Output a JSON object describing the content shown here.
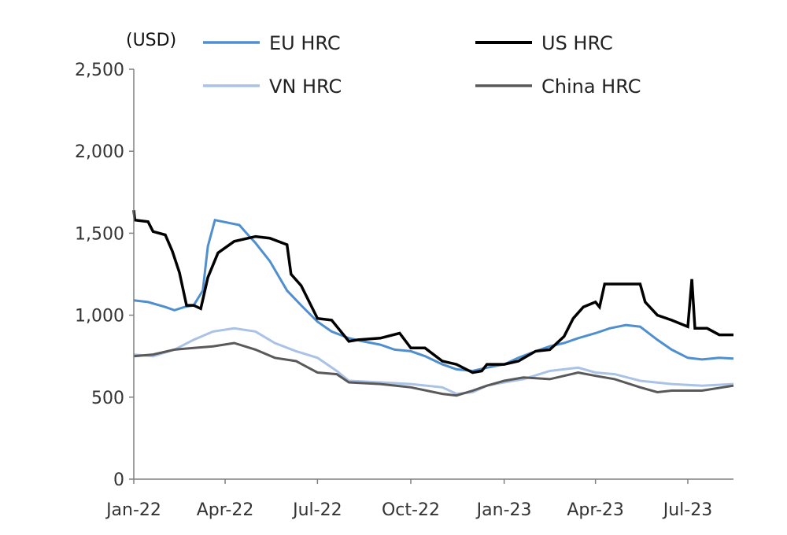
{
  "chart_data": {
    "type": "line",
    "title": "",
    "unit_label": "(USD)",
    "xlabel": "",
    "ylabel": "",
    "ylim": [
      0,
      2500
    ],
    "yticks": [
      0,
      500,
      1000,
      1500,
      2000,
      2500
    ],
    "ytick_labels": [
      "0",
      "500",
      "1,000",
      "1,500",
      "2,000",
      "2,500"
    ],
    "xrange": [
      "2022-01-01",
      "2023-08-15"
    ],
    "xticks": [
      "2022-01-01",
      "2022-04-01",
      "2022-07-01",
      "2022-10-01",
      "2023-01-01",
      "2023-04-01",
      "2023-07-01"
    ],
    "xtick_labels": [
      "Jan-22",
      "Apr-22",
      "Jul-22",
      "Oct-22",
      "Jan-23",
      "Apr-23",
      "Jul-23"
    ],
    "grid": false,
    "legend_position": "top",
    "series": [
      {
        "name": "EU HRC",
        "color": "#4f8fcf",
        "width": 3,
        "points": [
          [
            "2022-01-01",
            1090
          ],
          [
            "2022-01-15",
            1080
          ],
          [
            "2022-02-01",
            1050
          ],
          [
            "2022-02-10",
            1030
          ],
          [
            "2022-02-20",
            1050
          ],
          [
            "2022-03-01",
            1060
          ],
          [
            "2022-03-10",
            1150
          ],
          [
            "2022-03-15",
            1420
          ],
          [
            "2022-03-22",
            1580
          ],
          [
            "2022-04-15",
            1550
          ],
          [
            "2022-04-25",
            1480
          ],
          [
            "2022-05-01",
            1440
          ],
          [
            "2022-05-15",
            1330
          ],
          [
            "2022-06-01",
            1150
          ],
          [
            "2022-06-15",
            1060
          ],
          [
            "2022-07-01",
            960
          ],
          [
            "2022-07-15",
            900
          ],
          [
            "2022-08-01",
            860
          ],
          [
            "2022-08-15",
            840
          ],
          [
            "2022-09-01",
            820
          ],
          [
            "2022-09-15",
            790
          ],
          [
            "2022-10-01",
            780
          ],
          [
            "2022-10-15",
            750
          ],
          [
            "2022-11-01",
            700
          ],
          [
            "2022-11-15",
            670
          ],
          [
            "2022-12-01",
            660
          ],
          [
            "2022-12-15",
            680
          ],
          [
            "2023-01-01",
            700
          ],
          [
            "2023-01-15",
            740
          ],
          [
            "2023-02-01",
            780
          ],
          [
            "2023-02-15",
            810
          ],
          [
            "2023-03-01",
            830
          ],
          [
            "2023-03-15",
            860
          ],
          [
            "2023-04-01",
            890
          ],
          [
            "2023-04-15",
            920
          ],
          [
            "2023-05-01",
            940
          ],
          [
            "2023-05-15",
            930
          ],
          [
            "2023-06-01",
            850
          ],
          [
            "2023-06-15",
            790
          ],
          [
            "2023-07-01",
            740
          ],
          [
            "2023-07-15",
            730
          ],
          [
            "2023-08-01",
            740
          ],
          [
            "2023-08-15",
            735
          ]
        ]
      },
      {
        "name": "US HRC",
        "color": "#000000",
        "width": 3.5,
        "points": [
          [
            "2022-01-01",
            1640
          ],
          [
            "2022-01-02",
            1580
          ],
          [
            "2022-01-15",
            1570
          ],
          [
            "2022-01-20",
            1510
          ],
          [
            "2022-02-01",
            1490
          ],
          [
            "2022-02-08",
            1390
          ],
          [
            "2022-02-15",
            1260
          ],
          [
            "2022-02-22",
            1060
          ],
          [
            "2022-03-01",
            1060
          ],
          [
            "2022-03-08",
            1040
          ],
          [
            "2022-03-15",
            1230
          ],
          [
            "2022-03-25",
            1380
          ],
          [
            "2022-04-10",
            1450
          ],
          [
            "2022-05-01",
            1480
          ],
          [
            "2022-05-15",
            1470
          ],
          [
            "2022-06-01",
            1430
          ],
          [
            "2022-06-05",
            1250
          ],
          [
            "2022-06-15",
            1180
          ],
          [
            "2022-07-01",
            980
          ],
          [
            "2022-07-15",
            970
          ],
          [
            "2022-08-01",
            840
          ],
          [
            "2022-08-10",
            850
          ],
          [
            "2022-09-01",
            860
          ],
          [
            "2022-09-20",
            890
          ],
          [
            "2022-10-01",
            800
          ],
          [
            "2022-10-15",
            800
          ],
          [
            "2022-11-01",
            720
          ],
          [
            "2022-11-15",
            700
          ],
          [
            "2022-12-01",
            650
          ],
          [
            "2022-12-10",
            660
          ],
          [
            "2022-12-15",
            700
          ],
          [
            "2023-01-01",
            700
          ],
          [
            "2023-01-15",
            720
          ],
          [
            "2023-02-01",
            780
          ],
          [
            "2023-02-15",
            790
          ],
          [
            "2023-03-01",
            870
          ],
          [
            "2023-03-10",
            980
          ],
          [
            "2023-03-20",
            1050
          ],
          [
            "2023-04-01",
            1080
          ],
          [
            "2023-04-05",
            1050
          ],
          [
            "2023-04-10",
            1190
          ],
          [
            "2023-05-01",
            1190
          ],
          [
            "2023-05-15",
            1190
          ],
          [
            "2023-05-20",
            1080
          ],
          [
            "2023-06-01",
            1000
          ],
          [
            "2023-06-15",
            970
          ],
          [
            "2023-07-01",
            930
          ],
          [
            "2023-07-05",
            1220
          ],
          [
            "2023-07-08",
            920
          ],
          [
            "2023-07-20",
            920
          ],
          [
            "2023-08-01",
            880
          ],
          [
            "2023-08-15",
            880
          ]
        ]
      },
      {
        "name": "VN HRC",
        "color": "#a9c2e6",
        "width": 3,
        "points": [
          [
            "2022-01-01",
            760
          ],
          [
            "2022-01-20",
            750
          ],
          [
            "2022-02-10",
            790
          ],
          [
            "2022-03-01",
            850
          ],
          [
            "2022-03-20",
            900
          ],
          [
            "2022-04-10",
            920
          ],
          [
            "2022-05-01",
            900
          ],
          [
            "2022-05-20",
            830
          ],
          [
            "2022-06-10",
            780
          ],
          [
            "2022-07-01",
            740
          ],
          [
            "2022-07-20",
            660
          ],
          [
            "2022-08-01",
            600
          ],
          [
            "2022-09-01",
            590
          ],
          [
            "2022-10-01",
            580
          ],
          [
            "2022-11-01",
            560
          ],
          [
            "2022-11-15",
            520
          ],
          [
            "2022-12-01",
            530
          ],
          [
            "2022-12-15",
            570
          ],
          [
            "2023-01-01",
            590
          ],
          [
            "2023-01-20",
            610
          ],
          [
            "2023-02-15",
            660
          ],
          [
            "2023-03-15",
            680
          ],
          [
            "2023-04-01",
            650
          ],
          [
            "2023-04-20",
            640
          ],
          [
            "2023-05-15",
            600
          ],
          [
            "2023-06-15",
            580
          ],
          [
            "2023-07-15",
            570
          ],
          [
            "2023-08-15",
            580
          ]
        ]
      },
      {
        "name": "China HRC",
        "color": "#595959",
        "width": 3,
        "points": [
          [
            "2022-01-01",
            750
          ],
          [
            "2022-01-20",
            760
          ],
          [
            "2022-02-10",
            790
          ],
          [
            "2022-03-01",
            800
          ],
          [
            "2022-03-20",
            810
          ],
          [
            "2022-04-10",
            830
          ],
          [
            "2022-05-01",
            790
          ],
          [
            "2022-05-20",
            740
          ],
          [
            "2022-06-10",
            720
          ],
          [
            "2022-07-01",
            650
          ],
          [
            "2022-07-20",
            640
          ],
          [
            "2022-08-01",
            590
          ],
          [
            "2022-09-01",
            580
          ],
          [
            "2022-10-01",
            560
          ],
          [
            "2022-11-01",
            520
          ],
          [
            "2022-11-15",
            510
          ],
          [
            "2022-12-01",
            540
          ],
          [
            "2022-12-15",
            570
          ],
          [
            "2023-01-01",
            600
          ],
          [
            "2023-01-20",
            620
          ],
          [
            "2023-02-15",
            610
          ],
          [
            "2023-03-15",
            650
          ],
          [
            "2023-04-01",
            630
          ],
          [
            "2023-04-20",
            610
          ],
          [
            "2023-05-15",
            560
          ],
          [
            "2023-06-01",
            530
          ],
          [
            "2023-06-15",
            540
          ],
          [
            "2023-07-15",
            540
          ],
          [
            "2023-08-15",
            570
          ]
        ]
      }
    ]
  }
}
